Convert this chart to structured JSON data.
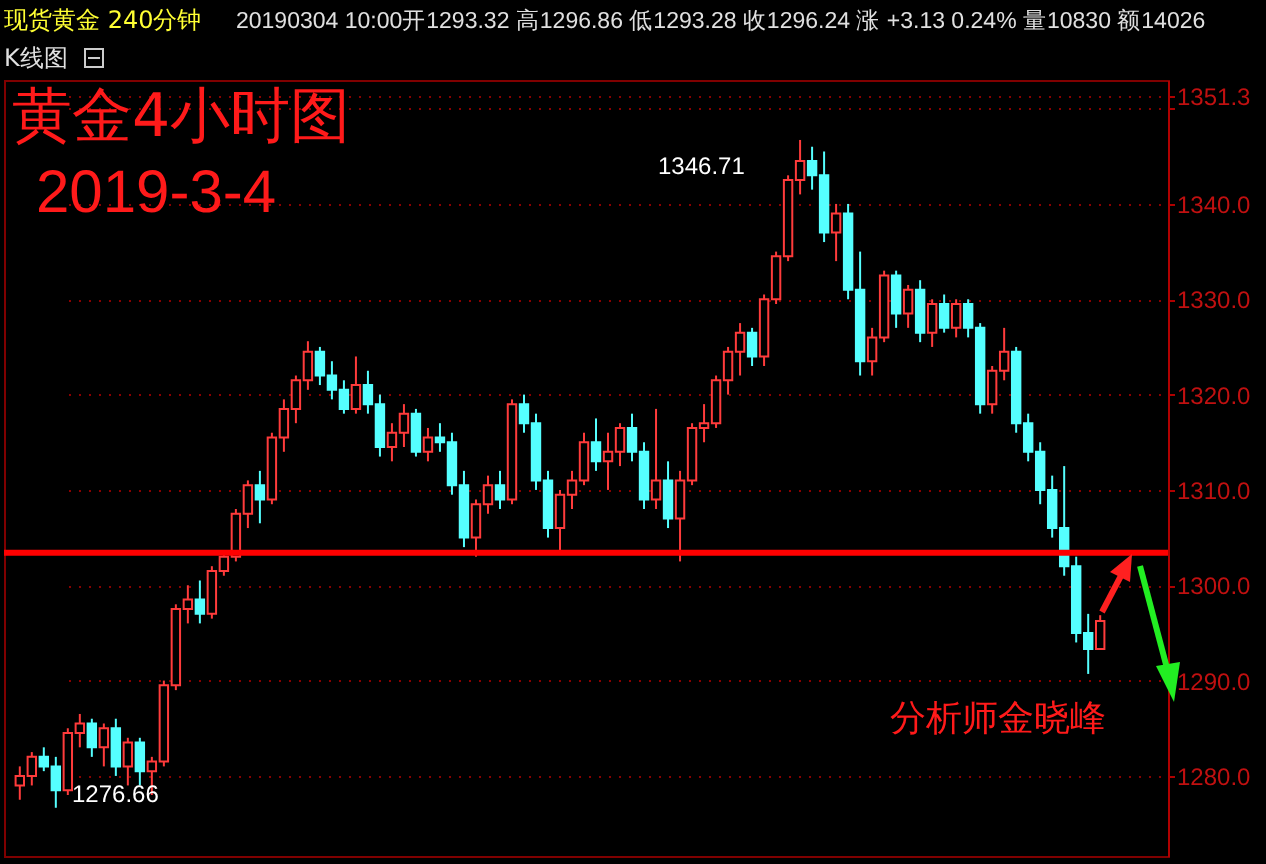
{
  "chart_data": {
    "type": "candlestick",
    "title": "黄金4小时图",
    "subtitle": "2019-3-4",
    "annotations": [
      "现货黄金 240分钟",
      "20190304 10:00开1293.32 高1296.86 低1293.28 收1296.24 涨 +3.13 0.24% 量10830 额14026",
      "K线图",
      "分析师金晓峰",
      "1346.71",
      "1276.66"
    ],
    "categories": [
      null,
      null,
      null,
      null,
      null,
      null,
      null,
      null,
      null,
      null,
      null,
      null,
      null,
      null,
      null,
      null,
      null,
      null,
      null,
      null,
      null,
      null,
      null,
      null,
      null,
      null,
      null,
      null,
      null,
      null,
      null,
      null,
      null,
      null,
      null,
      null,
      null,
      null,
      null,
      null,
      null,
      null,
      null,
      null,
      null,
      null,
      null,
      null,
      null,
      null,
      null,
      null,
      null,
      null,
      null,
      null,
      null,
      null,
      null,
      null,
      null,
      null,
      null,
      null,
      null,
      null,
      null,
      null,
      null,
      null,
      null,
      null,
      null,
      null,
      null,
      null,
      null,
      null,
      null,
      null,
      null,
      null,
      null,
      null,
      null,
      null,
      null,
      null,
      null,
      null,
      null
    ],
    "ohlc": [
      [
        1279,
        1281,
        1277.5,
        1280
      ],
      [
        1280,
        1282.5,
        1279,
        1282
      ],
      [
        1282,
        1283,
        1280.5,
        1281
      ],
      [
        1281,
        1282,
        1276.66,
        1278.5
      ],
      [
        1278.5,
        1285,
        1278,
        1284.5
      ],
      [
        1284.5,
        1286.5,
        1283,
        1285.5
      ],
      [
        1285.5,
        1286,
        1282,
        1283
      ],
      [
        1283,
        1285.5,
        1281,
        1285
      ],
      [
        1285,
        1286,
        1280,
        1281
      ],
      [
        1281,
        1284,
        1279,
        1283.5
      ],
      [
        1283.5,
        1284,
        1279,
        1280.5
      ],
      [
        1280.5,
        1282,
        1278,
        1281.5
      ],
      [
        1281.5,
        1290,
        1281,
        1289.5
      ],
      [
        1289.5,
        1298,
        1289,
        1297.5
      ],
      [
        1297.5,
        1300,
        1296,
        1298.5
      ],
      [
        1298.5,
        1300.5,
        1296,
        1297
      ],
      [
        1297,
        1302,
        1296.5,
        1301.5
      ],
      [
        1301.5,
        1303.5,
        1301,
        1303
      ],
      [
        1303,
        1308,
        1302.5,
        1307.5
      ],
      [
        1307.5,
        1311,
        1306,
        1310.5
      ],
      [
        1310.5,
        1312,
        1306.5,
        1309
      ],
      [
        1309,
        1316,
        1308.5,
        1315.5
      ],
      [
        1315.5,
        1319.5,
        1314,
        1318.5
      ],
      [
        1318.5,
        1322,
        1317,
        1321.5
      ],
      [
        1321.5,
        1325.6,
        1320.5,
        1324.5
      ],
      [
        1324.5,
        1325,
        1321,
        1322
      ],
      [
        1322,
        1323.5,
        1319.5,
        1320.5
      ],
      [
        1320.5,
        1321.5,
        1318,
        1318.5
      ],
      [
        1318.5,
        1324,
        1318,
        1321
      ],
      [
        1321,
        1322.5,
        1318,
        1319
      ],
      [
        1319,
        1320,
        1313.5,
        1314.5
      ],
      [
        1314.5,
        1317,
        1313,
        1316
      ],
      [
        1316,
        1319,
        1314.5,
        1318
      ],
      [
        1318,
        1318.5,
        1313.5,
        1314
      ],
      [
        1314,
        1316.5,
        1313,
        1315.5
      ],
      [
        1315.5,
        1317,
        1314,
        1315
      ],
      [
        1315,
        1316,
        1309.5,
        1310.5
      ],
      [
        1310.5,
        1312,
        1304,
        1305
      ],
      [
        1305,
        1309,
        1303,
        1308.5
      ],
      [
        1308.5,
        1311.5,
        1307.5,
        1310.5
      ],
      [
        1310.5,
        1312,
        1308,
        1309
      ],
      [
        1309,
        1319.5,
        1308.5,
        1319
      ],
      [
        1319,
        1320,
        1316,
        1317
      ],
      [
        1317,
        1318,
        1310,
        1311
      ],
      [
        1311,
        1312,
        1305,
        1306
      ],
      [
        1306,
        1310,
        1303.5,
        1309.5
      ],
      [
        1309.5,
        1312,
        1308,
        1311
      ],
      [
        1311,
        1316,
        1310.5,
        1315
      ],
      [
        1315,
        1317.5,
        1312,
        1313
      ],
      [
        1313,
        1316,
        1310,
        1314
      ],
      [
        1314,
        1317,
        1312.5,
        1316.5
      ],
      [
        1316.5,
        1318,
        1313,
        1314
      ],
      [
        1314,
        1315,
        1308,
        1309
      ],
      [
        1309,
        1318.5,
        1308,
        1311
      ],
      [
        1311,
        1313,
        1306,
        1307
      ],
      [
        1307,
        1312,
        1302.5,
        1311
      ],
      [
        1311,
        1317,
        1310.5,
        1316.5
      ],
      [
        1316.5,
        1319,
        1315,
        1317
      ],
      [
        1317,
        1322,
        1316.5,
        1321.5
      ],
      [
        1321.5,
        1325,
        1320,
        1324.5
      ],
      [
        1324.5,
        1327.5,
        1322,
        1326.5
      ],
      [
        1326.5,
        1327,
        1323,
        1324
      ],
      [
        1324,
        1330.5,
        1323,
        1330
      ],
      [
        1330,
        1335,
        1329.5,
        1334.5
      ],
      [
        1334.5,
        1343,
        1334,
        1342.5
      ],
      [
        1342.5,
        1346.71,
        1341,
        1344.5
      ],
      [
        1344.5,
        1346,
        1341.5,
        1343
      ],
      [
        1343,
        1345.5,
        1336,
        1337
      ],
      [
        1337,
        1340,
        1334,
        1339
      ],
      [
        1339,
        1340,
        1330,
        1331
      ],
      [
        1331,
        1335,
        1322,
        1323.5
      ],
      [
        1323.5,
        1327,
        1322,
        1326
      ],
      [
        1326,
        1333,
        1325.5,
        1332.5
      ],
      [
        1332.5,
        1333,
        1327,
        1328.5
      ],
      [
        1328.5,
        1331.5,
        1327,
        1331
      ],
      [
        1331,
        1332,
        1325.5,
        1326.5
      ],
      [
        1326.5,
        1330,
        1325,
        1329.5
      ],
      [
        1329.5,
        1330.5,
        1326.5,
        1327
      ],
      [
        1327,
        1330,
        1326,
        1329.5
      ],
      [
        1329.5,
        1330,
        1326,
        1327
      ],
      [
        1327,
        1327.5,
        1318,
        1319
      ],
      [
        1319,
        1323,
        1318,
        1322.5
      ],
      [
        1322.5,
        1327,
        1321.5,
        1324.5
      ],
      [
        1324.5,
        1325,
        1316,
        1317
      ],
      [
        1317,
        1318,
        1313,
        1314
      ],
      [
        1314,
        1315,
        1308.5,
        1310
      ],
      [
        1310,
        1311.5,
        1305,
        1306
      ],
      [
        1306,
        1312.5,
        1301,
        1302
      ],
      [
        1302,
        1303,
        1294,
        1295
      ],
      [
        1295,
        1297,
        1290.7,
        1293.32
      ],
      [
        1293.32,
        1296.86,
        1293.28,
        1296.24
      ]
    ],
    "ylim": [
      1271.6,
      1353
    ],
    "yticks": [
      {
        "value": 1280,
        "label": "1280.0"
      },
      {
        "value": 1290,
        "label": "1290.0"
      },
      {
        "value": 1300,
        "label": "1300.0"
      },
      {
        "value": 1310,
        "label": "1310.0"
      },
      {
        "value": 1320,
        "label": "1320.0"
      },
      {
        "value": 1330,
        "label": "1330.0"
      },
      {
        "value": 1340,
        "label": "1340.0"
      },
      {
        "value": 1350,
        "label": null
      },
      {
        "value": 1351.3,
        "label": "1351.3"
      }
    ],
    "ref_lines": [
      {
        "axis": "y",
        "value": 1303.4,
        "color": "#ff0000"
      }
    ],
    "grid": "y",
    "legend": false,
    "tick_labels": "y"
  }
}
